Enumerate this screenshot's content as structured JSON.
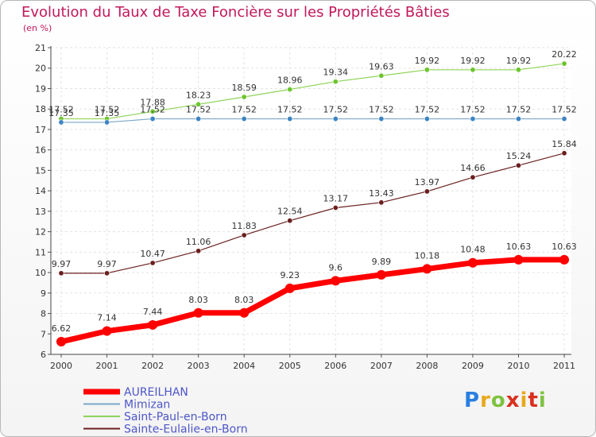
{
  "title": "Evolution du Taux de Taxe Foncière sur les Propriétés Bâties",
  "subtitle": "(en %)",
  "logo": {
    "letters": [
      "P",
      "r",
      "o",
      "x",
      "i",
      "t",
      "i"
    ],
    "colors": [
      "#2a7ee0",
      "#e8a81a",
      "#7fc241",
      "#d9301e",
      "#e8a81a",
      "#d9301e",
      "#7fc241"
    ]
  },
  "chart_data": {
    "type": "line",
    "title": "Evolution du Taux de Taxe Foncière sur les Propriétés Bâties",
    "ylabel": "(en %)",
    "xlabel": "",
    "categories": [
      "2000",
      "2001",
      "2002",
      "2003",
      "2004",
      "2005",
      "2006",
      "2007",
      "2008",
      "2009",
      "2010",
      "2011"
    ],
    "ylim": [
      6,
      21
    ],
    "yticks": [
      "6",
      "7",
      "8",
      "9",
      "10",
      "11",
      "12",
      "13",
      "14",
      "15",
      "16",
      "17",
      "18",
      "19",
      "20",
      "21"
    ],
    "grid": true,
    "legend": "bottom-left",
    "series": [
      {
        "name": "Sainte-Eulalie-en-Born",
        "color": "#6b1f1f",
        "width": "thin",
        "values": [
          9.97,
          9.97,
          10.47,
          11.06,
          11.83,
          12.54,
          13.17,
          13.43,
          13.97,
          14.66,
          15.24,
          15.84
        ],
        "labels": [
          "9.97",
          "9.97",
          "10.47",
          "11.06",
          "11.83",
          "12.54",
          "13.17",
          "13.43",
          "13.97",
          "14.66",
          "15.24",
          "15.84"
        ]
      },
      {
        "name": "Saint-Paul-en-Born",
        "color": "#8fd45a",
        "marker": "#6cc42e",
        "width": "thin",
        "values": [
          17.52,
          17.52,
          17.88,
          18.23,
          18.59,
          18.96,
          19.34,
          19.63,
          19.92,
          19.92,
          19.92,
          20.22
        ],
        "labels": [
          "17.52",
          "17.52",
          "17.88",
          "18.23",
          "18.59",
          "18.96",
          "19.34",
          "19.63",
          "19.92",
          "19.92",
          "19.92",
          "20.22"
        ]
      },
      {
        "name": "Mimizan",
        "color": "#7aa6c8",
        "marker": "#3d84c2",
        "width": "thin",
        "values": [
          17.35,
          17.35,
          17.52,
          17.52,
          17.52,
          17.52,
          17.52,
          17.52,
          17.52,
          17.52,
          17.52,
          17.52
        ],
        "labels": [
          "17.35",
          "17.35",
          "17.52",
          "17.52",
          "17.52",
          "17.52",
          "17.52",
          "17.52",
          "17.52",
          "17.52",
          "17.52",
          "17.52"
        ]
      },
      {
        "name": "AUREILHAN",
        "color": "#ff0000",
        "marker": "#ff0000",
        "width": "thick",
        "values": [
          6.62,
          7.14,
          7.44,
          8.03,
          8.03,
          9.23,
          9.6,
          9.89,
          10.18,
          10.48,
          10.63,
          10.63
        ],
        "labels": [
          "6.62",
          "7.14",
          "7.44",
          "8.03",
          "8.03",
          "9.23",
          "9.6",
          "9.89",
          "10.18",
          "10.48",
          "10.63",
          "10.63"
        ]
      }
    ],
    "legend_entries": [
      {
        "name": "AUREILHAN",
        "color": "#ff0000",
        "width": "thick"
      },
      {
        "name": "Mimizan",
        "color": "#7aa6c8",
        "width": "thin"
      },
      {
        "name": "Saint-Paul-en-Born",
        "color": "#8fd45a",
        "width": "thin"
      },
      {
        "name": "Sainte-Eulalie-en-Born",
        "color": "#6b1f1f",
        "width": "thin"
      }
    ]
  }
}
